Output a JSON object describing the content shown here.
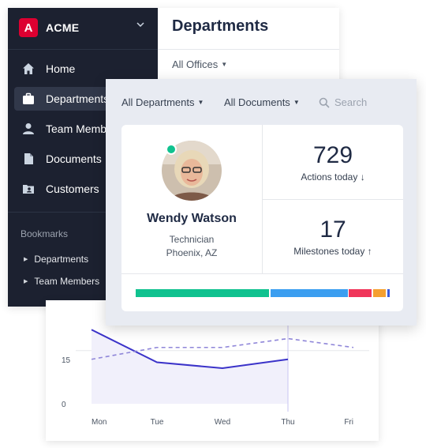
{
  "app": {
    "name": "ACME",
    "logo_letter": "A",
    "brand_color": "#dd0031"
  },
  "sidebar": {
    "items": [
      {
        "label": "Home",
        "icon": "home-icon"
      },
      {
        "label": "Departments",
        "icon": "briefcase-icon",
        "active": true
      },
      {
        "label": "Team Members",
        "icon": "person-icon"
      },
      {
        "label": "Documents",
        "icon": "document-icon"
      },
      {
        "label": "Customers",
        "icon": "folder-user-icon"
      }
    ],
    "bookmarks_title": "Bookmarks",
    "bookmarks": [
      {
        "label": "Departments"
      },
      {
        "label": "Team Members"
      }
    ]
  },
  "main": {
    "title": "Departments",
    "office_filter": "All Offices"
  },
  "overlay": {
    "department_filter": "All Departments",
    "document_filter": "All Documents",
    "search_placeholder": "Search",
    "profile": {
      "name": "Wendy Watson",
      "role": "Technician",
      "location": "Phoenix, AZ",
      "status_color": "#10c28f"
    },
    "stats": [
      {
        "value": "729",
        "label": "Actions today ↓"
      },
      {
        "value": "17",
        "label": "Milestones today ↑"
      }
    ],
    "progress": [
      {
        "color": "#10c28f",
        "fraction": 0.53
      },
      {
        "color": "#3b9ef0",
        "fraction": 0.305
      },
      {
        "color": "#f0365a",
        "fraction": 0.09
      },
      {
        "color": "#f5a030",
        "fraction": 0.05
      },
      {
        "color": "#3b5bdb",
        "fraction": 0.01
      }
    ]
  },
  "chart_data": {
    "type": "line",
    "categories": [
      "Mon",
      "Tue",
      "Wed",
      "Thu",
      "Fri"
    ],
    "y_ticks": [
      0,
      15
    ],
    "ylim": [
      0,
      30
    ],
    "series": [
      {
        "style": "solid",
        "color": "#3b33c9",
        "values": [
          25,
          14,
          12,
          15,
          null
        ]
      },
      {
        "style": "dashed",
        "color": "#8f86d9",
        "values": [
          15,
          19,
          19,
          22,
          19
        ]
      }
    ]
  }
}
